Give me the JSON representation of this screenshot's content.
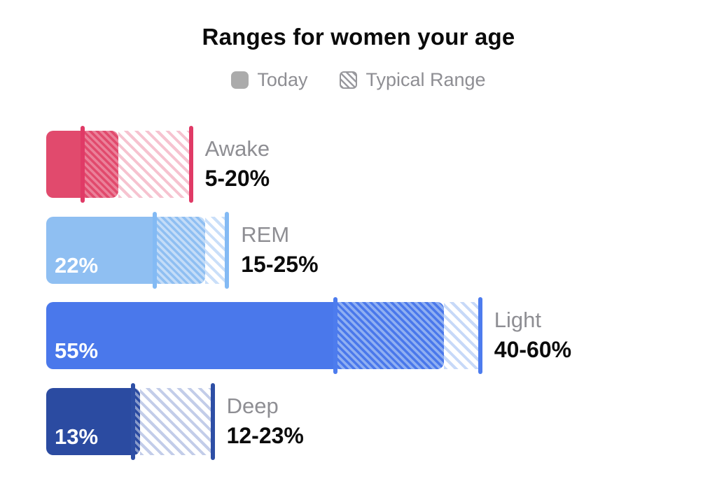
{
  "title": "Ranges for women your age",
  "legend": {
    "today_label": "Today",
    "typical_label": "Typical Range",
    "today_swatch_color": "#ababab",
    "hatch_swatch_color": "#97979b",
    "text_color": "#8e8e93"
  },
  "chart_data": {
    "type": "bar",
    "orientation": "horizontal",
    "unit": "%",
    "axis_min": 0,
    "axis_max": 60,
    "legend_position": "top",
    "series_meaning": {
      "solid_bar": "Today",
      "hatched_band": "Typical Range"
    },
    "stages": [
      {
        "name": "Awake",
        "value": 10,
        "value_label": "",
        "range_min": 5,
        "range_max": 20,
        "range_label": "5-20%",
        "color": "#e14a6d",
        "color_overlap_light": "#eb8099",
        "color_tint": "#f6c3d0",
        "marker_color": "#e03a66"
      },
      {
        "name": "REM",
        "value": 22,
        "value_label": "22%",
        "range_min": 15,
        "range_max": 25,
        "range_label": "15-25%",
        "color": "#8fbff2",
        "color_overlap_light": "#c3dcf8",
        "color_tint": "#cadff9",
        "marker_color": "#83baf4"
      },
      {
        "name": "Light",
        "value": 55,
        "value_label": "55%",
        "range_min": 40,
        "range_max": 60,
        "range_label": "40-60%",
        "color": "#4a78eb",
        "color_overlap_light": "#8faff2",
        "color_tint": "#c7d9f8",
        "marker_color": "#4d7cee"
      },
      {
        "name": "Deep",
        "value": 13,
        "value_label": "13%",
        "range_min": 12,
        "range_max": 23,
        "range_label": "12-23%",
        "color": "#2b4ba1",
        "color_overlap_light": "#8a9ccb",
        "color_tint": "#c3cde9",
        "marker_color": "#2e4fa5"
      }
    ]
  }
}
